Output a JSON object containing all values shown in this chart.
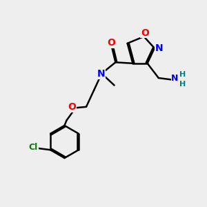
{
  "bg_color": "#eeeeee",
  "bond_color": "#000000",
  "atom_colors": {
    "O": "#ff0000",
    "N": "#0000ff",
    "Cl": "#008000",
    "NH2_H": "#008080",
    "C": "#000000"
  },
  "figsize": [
    3.0,
    3.0
  ],
  "dpi": 100
}
